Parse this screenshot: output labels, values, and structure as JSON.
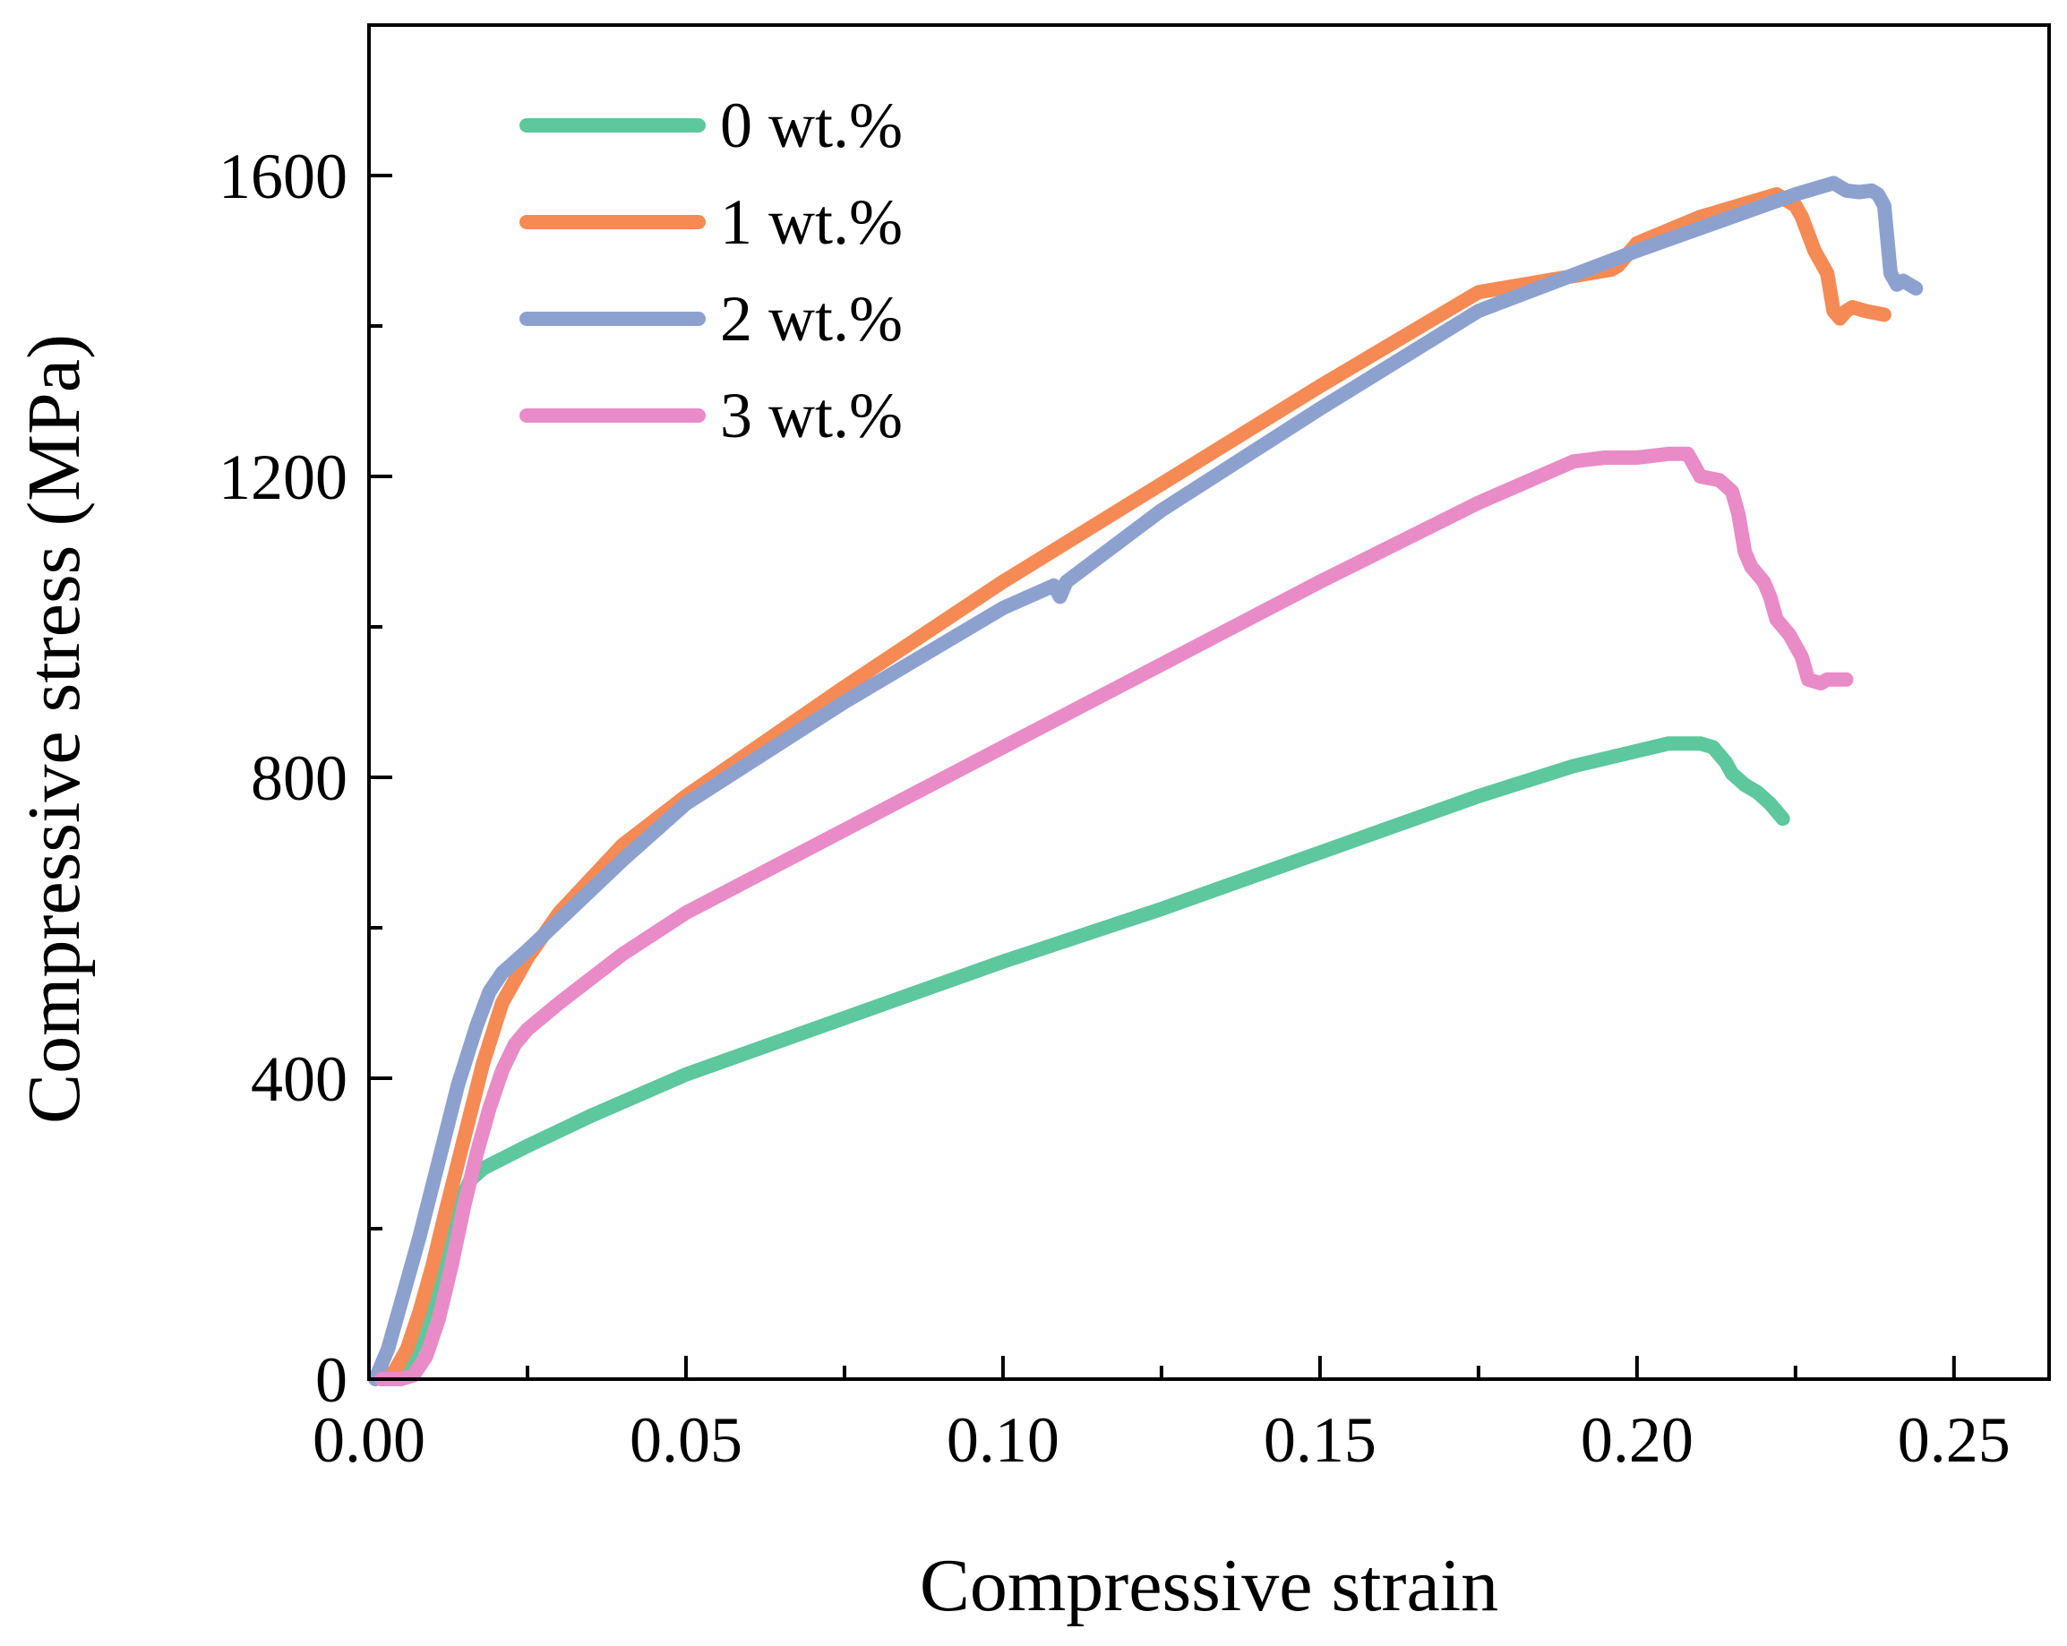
{
  "chart_data": {
    "type": "line",
    "title": "",
    "xlabel": "Compressive strain",
    "ylabel": "Compressive stress (MPa)",
    "xlim": [
      0,
      0.265
    ],
    "ylim": [
      0,
      1800
    ],
    "grid": false,
    "legend_position": "top-left",
    "xticks": [
      {
        "value": 0,
        "label": "0.00"
      },
      {
        "value": 0.05,
        "label": "0.05"
      },
      {
        "value": 0.1,
        "label": "0.10"
      },
      {
        "value": 0.15,
        "label": "0.15"
      },
      {
        "value": 0.2,
        "label": "0.20"
      },
      {
        "value": 0.25,
        "label": "0.25"
      }
    ],
    "x_minor_ticks": [
      0.025,
      0.075,
      0.125,
      0.175,
      0.225
    ],
    "yticks": [
      {
        "value": 0,
        "label": "0"
      },
      {
        "value": 400,
        "label": "400"
      },
      {
        "value": 800,
        "label": "800"
      },
      {
        "value": 1200,
        "label": "1200"
      },
      {
        "value": 1600,
        "label": "1600"
      }
    ],
    "y_minor_ticks": [
      200,
      600,
      1000,
      1400
    ],
    "series": [
      {
        "name": "0 wt.%",
        "color": "#5DC79D",
        "x": [
          0.004,
          0.006,
          0.008,
          0.01,
          0.012,
          0.014,
          0.016,
          0.018,
          0.025,
          0.035,
          0.05,
          0.075,
          0.1,
          0.125,
          0.15,
          0.175,
          0.19,
          0.2,
          0.205,
          0.21,
          0.212,
          0.214,
          0.215,
          0.217,
          0.219,
          0.221,
          0.223
        ],
        "y": [
          0,
          20,
          60,
          120,
          180,
          230,
          265,
          280,
          310,
          350,
          405,
          480,
          555,
          625,
          700,
          775,
          815,
          835,
          845,
          845,
          840,
          820,
          805,
          790,
          780,
          765,
          745
        ]
      },
      {
        "name": "1 wt.%",
        "color": "#F58A55",
        "x": [
          0.002,
          0.004,
          0.006,
          0.008,
          0.01,
          0.012,
          0.015,
          0.018,
          0.021,
          0.025,
          0.03,
          0.04,
          0.05,
          0.075,
          0.1,
          0.125,
          0.15,
          0.175,
          0.196,
          0.197,
          0.2,
          0.21,
          0.222,
          0.225,
          0.226,
          0.228,
          0.23,
          0.231,
          0.232,
          0.233,
          0.234,
          0.236,
          0.239
        ],
        "y": [
          0,
          10,
          40,
          90,
          150,
          220,
          320,
          420,
          500,
          560,
          620,
          710,
          775,
          920,
          1060,
          1190,
          1320,
          1445,
          1475,
          1480,
          1510,
          1545,
          1575,
          1560,
          1545,
          1500,
          1470,
          1420,
          1410,
          1420,
          1425,
          1420,
          1415
        ]
      },
      {
        "name": "2 wt.%",
        "color": "#8DA1CF",
        "x": [
          0.001,
          0.003,
          0.005,
          0.008,
          0.011,
          0.014,
          0.017,
          0.019,
          0.021,
          0.025,
          0.03,
          0.04,
          0.05,
          0.075,
          0.1,
          0.108,
          0.109,
          0.11,
          0.125,
          0.15,
          0.175,
          0.2,
          0.225,
          0.231,
          0.233,
          0.235,
          0.237,
          0.238,
          0.239,
          0.24,
          0.241,
          0.242,
          0.244
        ],
        "y": [
          0,
          40,
          100,
          190,
          290,
          390,
          470,
          515,
          540,
          570,
          610,
          690,
          765,
          900,
          1025,
          1055,
          1040,
          1060,
          1155,
          1290,
          1420,
          1500,
          1575,
          1590,
          1580,
          1578,
          1580,
          1575,
          1560,
          1470,
          1455,
          1460,
          1450
        ]
      },
      {
        "name": "3 wt.%",
        "color": "#E98BC7",
        "x": [
          0.002,
          0.005,
          0.007,
          0.009,
          0.011,
          0.013,
          0.015,
          0.017,
          0.019,
          0.021,
          0.023,
          0.025,
          0.03,
          0.04,
          0.05,
          0.075,
          0.1,
          0.125,
          0.15,
          0.175,
          0.19,
          0.195,
          0.2,
          0.205,
          0.208,
          0.21,
          0.213,
          0.215,
          0.216,
          0.217,
          0.218,
          0.22,
          0.221,
          0.222,
          0.224,
          0.226,
          0.227,
          0.229,
          0.23,
          0.233
        ],
        "y": [
          0,
          0,
          5,
          30,
          80,
          150,
          230,
          300,
          360,
          410,
          445,
          465,
          500,
          565,
          620,
          730,
          840,
          950,
          1060,
          1165,
          1220,
          1225,
          1225,
          1230,
          1230,
          1200,
          1195,
          1180,
          1150,
          1100,
          1080,
          1060,
          1040,
          1010,
          990,
          960,
          930,
          925,
          930,
          930
        ]
      }
    ]
  }
}
